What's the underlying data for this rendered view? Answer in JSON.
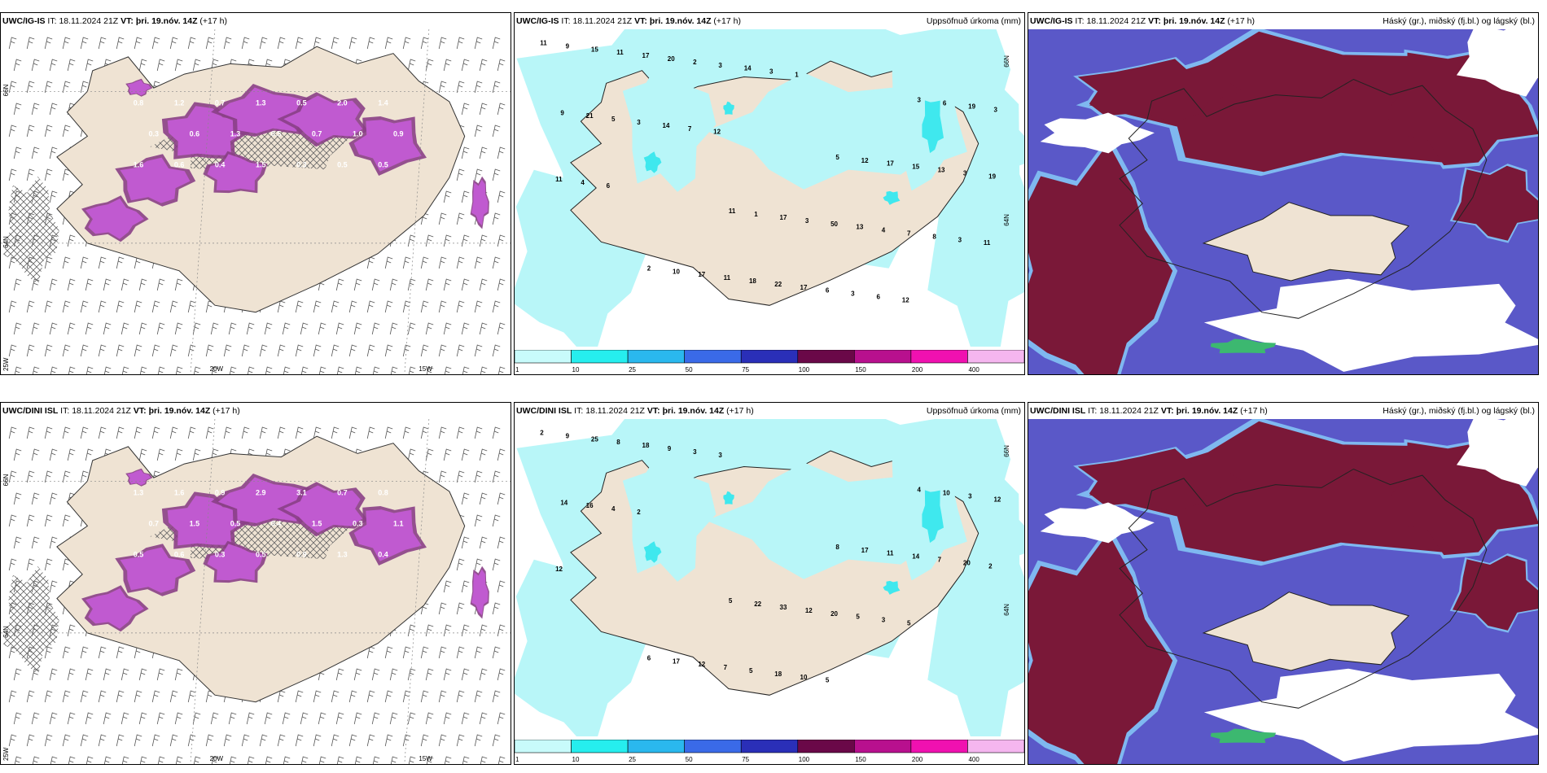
{
  "colors": {
    "land": "#efe3d3",
    "precip_light": "#b8f6f8",
    "precip_mid": "#3fe8ee",
    "snow_purple": "#c05ad0",
    "cloud_high": "#7a1838",
    "cloud_mid": "#5a58c8",
    "cloud_edge": "#7fb8f0"
  },
  "panels": [
    {
      "id": "r1c1",
      "model": "UWC/IG-IS",
      "it_label": "IT:",
      "it_value": "18.11.2024 21Z",
      "vt_label": "VT:",
      "vt_value": "þri. 19.nóv. 14Z",
      "lead": "(+17 h)",
      "right_title": "",
      "axis": {
        "lat1": "66N",
        "lat2": "64N",
        "lon1": "25W",
        "lon2": "20W",
        "lon3": "15W"
      },
      "values": [
        "0.8",
        "1.2",
        "0.7",
        "1.3",
        "0.5",
        "2.0",
        "1.4",
        "0.3",
        "0.6",
        "1.3",
        "0.5",
        "0.7",
        "1.0",
        "0.9",
        "1.6",
        "0.6",
        "0.4",
        "1.5",
        "0.3",
        "0.5",
        "0.5"
      ]
    },
    {
      "id": "r1c2",
      "model": "UWC/IG-IS",
      "it_label": "IT:",
      "it_value": "18.11.2024 21Z",
      "vt_label": "VT:",
      "vt_value": "þri. 19.nóv. 14Z",
      "lead": "(+17 h)",
      "right_title": "Uppsöfnuð úrkoma (mm)",
      "axis": {
        "lat1": "66N",
        "lat2": "64N"
      },
      "values": [
        "11",
        "11",
        "3",
        "2",
        "5",
        "9",
        "1",
        "6",
        "10",
        "12",
        "15",
        "17",
        "19",
        "17",
        "17",
        "11",
        "3",
        "3",
        "11",
        "15",
        "17",
        "50",
        "9",
        "18",
        "13",
        "20",
        "13",
        "21",
        "22",
        "3",
        "2",
        "4",
        "5",
        "17",
        "19",
        "3",
        "7",
        "3",
        "6",
        "11",
        "14",
        "8",
        "14",
        "3",
        "4",
        "3",
        "3",
        "7",
        "6",
        "6",
        "1",
        "11",
        "12",
        "12"
      ]
    },
    {
      "id": "r1c3",
      "model": "UWC/IG-IS",
      "it_label": "IT:",
      "it_value": "18.11.2024 21Z",
      "vt_label": "VT:",
      "vt_value": "þri. 19.nóv. 14Z",
      "lead": "(+17 h)",
      "right_title": "Háský (gr.), miðský (fj.bl.) og lágský (bl.)"
    },
    {
      "id": "r2c1",
      "model": "UWC/DINI ISL",
      "it_label": "IT:",
      "it_value": "18.11.2024 21Z",
      "vt_label": "VT:",
      "vt_value": "þri. 19.nóv. 14Z",
      "lead": "(+17 h)",
      "right_title": "",
      "axis": {
        "lat1": "66N",
        "lat2": "64N",
        "lon1": "25W",
        "lon2": "20W",
        "lon3": "15W"
      },
      "values": [
        "1.3",
        "1.6",
        "0.9",
        "2.9",
        "3.1",
        "0.7",
        "0.8",
        "0.7",
        "1.5",
        "0.5",
        "0.4",
        "1.5",
        "0.3",
        "1.1",
        "0.5",
        "0.6",
        "0.3",
        "0.5",
        "0.9",
        "1.3",
        "0.4"
      ]
    },
    {
      "id": "r2c2",
      "model": "UWC/DINI ISL",
      "it_label": "IT:",
      "it_value": "18.11.2024 21Z",
      "vt_label": "VT:",
      "vt_value": "þri. 19.nóv. 14Z",
      "lead": "(+17 h)",
      "right_title": "Uppsöfnuð úrkoma (mm)",
      "axis": {
        "lat1": "66N",
        "lat2": "64N"
      },
      "values": [
        "2",
        "5",
        "4",
        "6",
        "8",
        "9",
        "22",
        "10",
        "17",
        "17",
        "25",
        "33",
        "3",
        "12",
        "11",
        "8",
        "12",
        "12",
        "7",
        "14",
        "18",
        "20",
        "14",
        "5",
        "7",
        "9",
        "5",
        "16",
        "18",
        "20",
        "3",
        "3",
        "4",
        "10",
        "2",
        "3",
        "5",
        "2",
        "5",
        "12"
      ]
    },
    {
      "id": "r2c3",
      "model": "UWC/DINI ISL",
      "it_label": "IT:",
      "it_value": "18.11.2024 21Z",
      "vt_label": "VT:",
      "vt_value": "þri. 19.nóv. 14Z",
      "lead": "(+17 h)",
      "right_title": "Háský (gr.), miðský (fj.bl.) og lágský (bl.)"
    }
  ],
  "colorbar": {
    "ticks": [
      "1",
      "10",
      "25",
      "50",
      "75",
      "100",
      "150",
      "200",
      "400"
    ],
    "colors": [
      "#c8fbfb",
      "#26eeee",
      "#2ab8ee",
      "#3a6ae8",
      "#2a2fb8",
      "#6a0848",
      "#b8108e",
      "#f011b0",
      "#f5b6ef"
    ]
  }
}
